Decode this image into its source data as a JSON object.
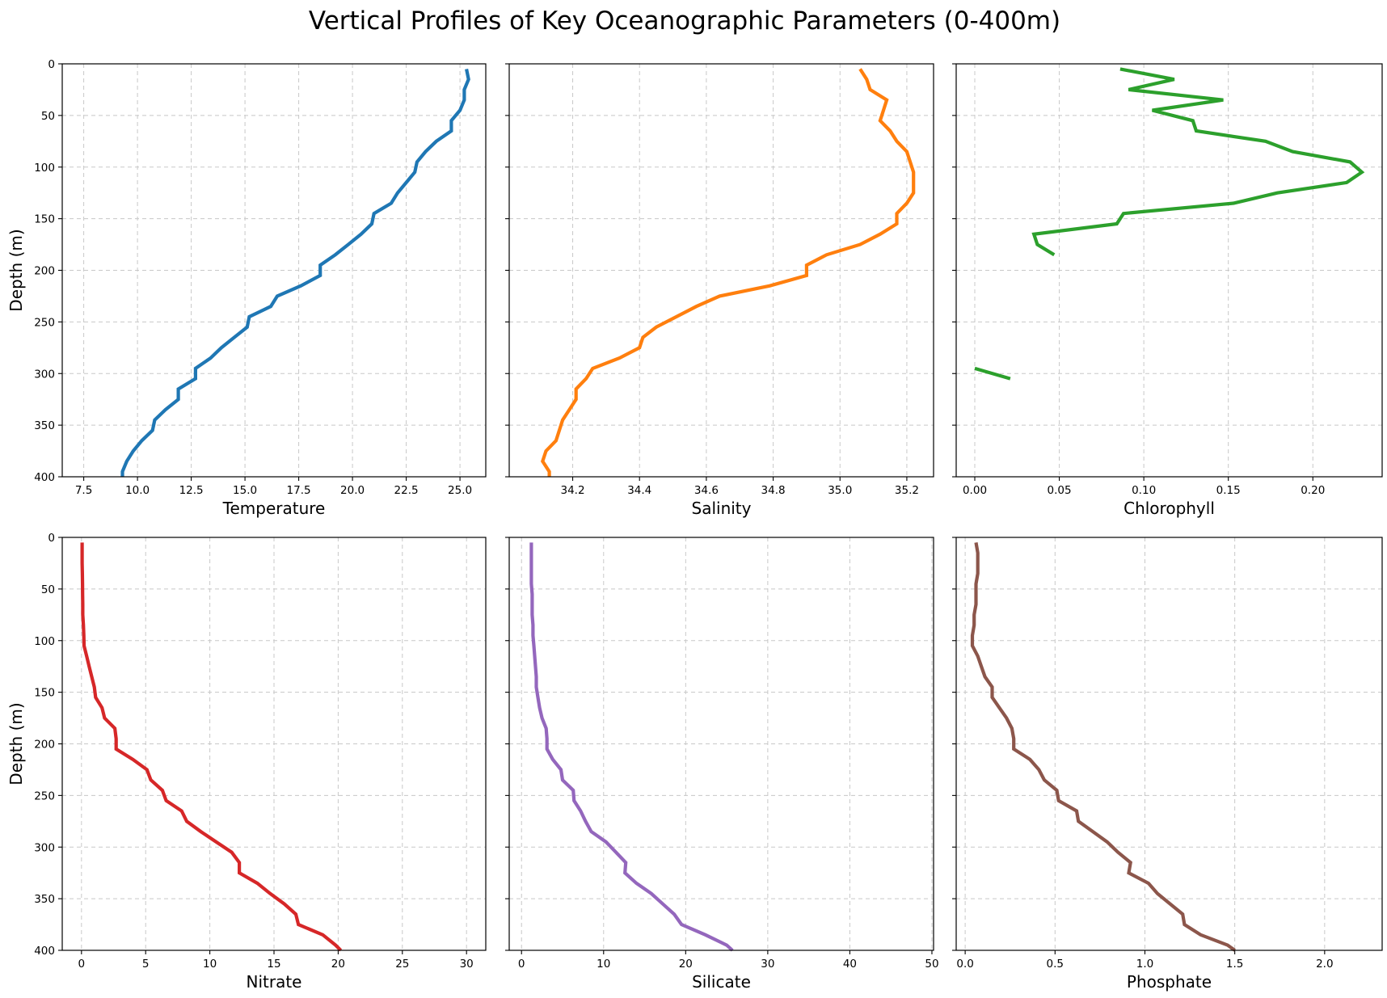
{
  "title": "Vertical Profiles of Key Oceanographic Parameters (0-400m)",
  "chart_data": [
    {
      "type": "line",
      "xlabel": "Temperature",
      "ylabel": "Depth (m)",
      "color": "#1f77b4",
      "xlim": [
        6.5,
        26.2
      ],
      "ylim": [
        400,
        0
      ],
      "xticks": [
        "7.5",
        "10.0",
        "12.5",
        "15.0",
        "17.5",
        "20.0",
        "22.5",
        "25.0"
      ],
      "xtick_values": [
        7.5,
        10,
        12.5,
        15,
        17.5,
        20,
        22.5,
        25
      ],
      "yticks": [
        "0",
        "50",
        "100",
        "150",
        "200",
        "250",
        "300",
        "350",
        "400"
      ],
      "show_yticklabels": true,
      "grid": true,
      "depth": [
        5,
        15,
        25,
        35,
        45,
        55,
        65,
        75,
        85,
        95,
        105,
        115,
        125,
        135,
        145,
        155,
        165,
        175,
        185,
        195,
        205,
        215,
        225,
        235,
        245,
        255,
        265,
        275,
        285,
        295,
        305,
        315,
        325,
        335,
        345,
        355,
        365,
        375,
        385,
        395,
        400
      ],
      "values": [
        25.3,
        25.4,
        25.2,
        25.2,
        25.0,
        24.6,
        24.6,
        23.9,
        23.4,
        23.0,
        22.9,
        22.5,
        22.1,
        21.8,
        21.0,
        20.9,
        20.4,
        19.8,
        19.2,
        18.5,
        18.5,
        17.6,
        16.5,
        16.2,
        15.2,
        15.1,
        14.5,
        13.9,
        13.4,
        12.7,
        12.7,
        11.9,
        11.9,
        11.3,
        10.8,
        10.7,
        10.2,
        9.8,
        9.5,
        9.3,
        9.3
      ]
    },
    {
      "type": "line",
      "xlabel": "Salinity",
      "ylabel": "",
      "color": "#ff7f0e",
      "xlim": [
        34.01,
        35.28
      ],
      "ylim": [
        400,
        0
      ],
      "xticks": [
        "34.2",
        "34.4",
        "34.6",
        "34.8",
        "35.0",
        "35.2"
      ],
      "xtick_values": [
        34.2,
        34.4,
        34.6,
        34.8,
        35.0,
        35.2
      ],
      "yticks": [
        "0",
        "50",
        "100",
        "150",
        "200",
        "250",
        "300",
        "350",
        "400"
      ],
      "show_yticklabels": false,
      "grid": true,
      "depth": [
        5,
        15,
        25,
        35,
        45,
        55,
        65,
        75,
        85,
        95,
        105,
        115,
        125,
        135,
        145,
        155,
        165,
        175,
        185,
        195,
        205,
        215,
        225,
        235,
        245,
        255,
        265,
        275,
        285,
        295,
        305,
        315,
        325,
        335,
        345,
        355,
        365,
        375,
        385,
        395,
        400
      ],
      "values": [
        35.06,
        35.08,
        35.09,
        35.14,
        35.13,
        35.12,
        35.15,
        35.17,
        35.2,
        35.21,
        35.22,
        35.22,
        35.22,
        35.2,
        35.17,
        35.17,
        35.12,
        35.06,
        34.96,
        34.9,
        34.9,
        34.79,
        34.64,
        34.57,
        34.51,
        34.45,
        34.41,
        34.4,
        34.34,
        34.26,
        34.24,
        34.21,
        34.21,
        34.19,
        34.17,
        34.16,
        34.15,
        34.12,
        34.11,
        34.13,
        34.13
      ]
    },
    {
      "type": "line",
      "xlabel": "Chlorophyll",
      "ylabel": "",
      "color": "#2ca02c",
      "xlim": [
        -0.011,
        0.241
      ],
      "ylim": [
        400,
        0
      ],
      "xticks": [
        "0.00",
        "0.05",
        "0.10",
        "0.15",
        "0.20"
      ],
      "xtick_values": [
        0,
        0.05,
        0.1,
        0.15,
        0.2
      ],
      "yticks": [
        "0",
        "50",
        "100",
        "150",
        "200",
        "250",
        "300",
        "350",
        "400"
      ],
      "show_yticklabels": false,
      "grid": true,
      "segments": [
        {
          "depth": [
            5,
            15,
            25,
            35,
            45,
            55,
            65,
            75,
            85,
            95,
            105,
            115,
            125,
            135,
            145,
            155,
            165,
            175,
            185
          ],
          "values": [
            0.086,
            0.118,
            0.091,
            0.147,
            0.105,
            0.129,
            0.131,
            0.172,
            0.188,
            0.222,
            0.229,
            0.22,
            0.179,
            0.153,
            0.088,
            0.084,
            0.035,
            0.037,
            0.047
          ]
        },
        {
          "depth": [
            295,
            305
          ],
          "values": [
            0.0,
            0.021
          ]
        }
      ]
    },
    {
      "type": "line",
      "xlabel": "Nitrate",
      "ylabel": "Depth (m)",
      "color": "#d62728",
      "xlim": [
        -1.5,
        31.5
      ],
      "ylim": [
        400,
        0
      ],
      "xticks": [
        "0",
        "5",
        "10",
        "15",
        "20",
        "25",
        "30"
      ],
      "xtick_values": [
        0,
        5,
        10,
        15,
        20,
        25,
        30
      ],
      "yticks": [
        "0",
        "50",
        "100",
        "150",
        "200",
        "250",
        "300",
        "350",
        "400"
      ],
      "show_yticklabels": true,
      "grid": true,
      "depth": [
        5,
        15,
        25,
        35,
        45,
        55,
        65,
        75,
        85,
        95,
        105,
        115,
        125,
        135,
        145,
        155,
        165,
        175,
        185,
        195,
        205,
        215,
        225,
        235,
        245,
        255,
        265,
        275,
        285,
        295,
        305,
        315,
        325,
        335,
        345,
        355,
        365,
        375,
        385,
        395,
        400
      ],
      "values": [
        0.05,
        0.05,
        0.05,
        0.07,
        0.08,
        0.09,
        0.1,
        0.1,
        0.15,
        0.18,
        0.2,
        0.4,
        0.6,
        0.8,
        1.0,
        1.1,
        1.6,
        1.8,
        2.6,
        2.7,
        2.7,
        4.0,
        5.1,
        5.4,
        6.3,
        6.6,
        7.8,
        8.2,
        9.3,
        10.5,
        11.7,
        12.3,
        12.3,
        13.7,
        14.7,
        15.8,
        16.7,
        16.9,
        18.8,
        19.8,
        20.2
      ]
    },
    {
      "type": "line",
      "xlabel": "Silicate",
      "ylabel": "",
      "color": "#9467bd",
      "xlim": [
        -1.5,
        50.2
      ],
      "ylim": [
        400,
        0
      ],
      "xticks": [
        "0",
        "10",
        "20",
        "30",
        "40",
        "50"
      ],
      "xtick_values": [
        0,
        10,
        20,
        30,
        40,
        50
      ],
      "yticks": [
        "0",
        "50",
        "100",
        "150",
        "200",
        "250",
        "300",
        "350",
        "400"
      ],
      "show_yticklabels": false,
      "grid": true,
      "depth": [
        5,
        15,
        25,
        35,
        45,
        55,
        65,
        75,
        85,
        95,
        105,
        115,
        125,
        135,
        145,
        155,
        165,
        175,
        185,
        195,
        205,
        215,
        225,
        235,
        245,
        255,
        265,
        275,
        285,
        295,
        305,
        315,
        325,
        335,
        345,
        355,
        365,
        375,
        385,
        395,
        400
      ],
      "values": [
        1.2,
        1.2,
        1.2,
        1.2,
        1.2,
        1.3,
        1.3,
        1.3,
        1.4,
        1.4,
        1.5,
        1.6,
        1.7,
        1.8,
        1.8,
        2.0,
        2.2,
        2.5,
        3.0,
        3.1,
        3.1,
        3.8,
        4.8,
        5.0,
        6.3,
        6.4,
        7.2,
        7.8,
        8.5,
        10.3,
        11.5,
        12.7,
        12.6,
        14.0,
        15.8,
        17.2,
        18.6,
        19.5,
        22.4,
        25.0,
        25.7
      ]
    },
    {
      "type": "line",
      "xlabel": "Phosphate",
      "ylabel": "",
      "color": "#8c564b",
      "xlim": [
        -0.05,
        2.32
      ],
      "ylim": [
        400,
        0
      ],
      "xticks": [
        "0.0",
        "0.5",
        "1.0",
        "1.5",
        "2.0"
      ],
      "xtick_values": [
        0,
        0.5,
        1.0,
        1.5,
        2.0
      ],
      "yticks": [
        "0",
        "50",
        "100",
        "150",
        "200",
        "250",
        "300",
        "350",
        "400"
      ],
      "show_yticklabels": false,
      "grid": true,
      "depth": [
        5,
        15,
        25,
        35,
        45,
        55,
        65,
        75,
        85,
        95,
        105,
        115,
        125,
        135,
        145,
        155,
        165,
        175,
        185,
        195,
        205,
        215,
        225,
        235,
        245,
        255,
        265,
        275,
        285,
        295,
        305,
        315,
        325,
        335,
        345,
        355,
        365,
        375,
        385,
        395,
        400
      ],
      "values": [
        0.06,
        0.07,
        0.07,
        0.07,
        0.06,
        0.06,
        0.06,
        0.05,
        0.05,
        0.04,
        0.04,
        0.07,
        0.09,
        0.11,
        0.15,
        0.15,
        0.19,
        0.23,
        0.26,
        0.27,
        0.27,
        0.36,
        0.41,
        0.44,
        0.51,
        0.52,
        0.62,
        0.63,
        0.71,
        0.79,
        0.85,
        0.92,
        0.91,
        1.02,
        1.07,
        1.14,
        1.21,
        1.22,
        1.31,
        1.46,
        1.5
      ]
    }
  ]
}
